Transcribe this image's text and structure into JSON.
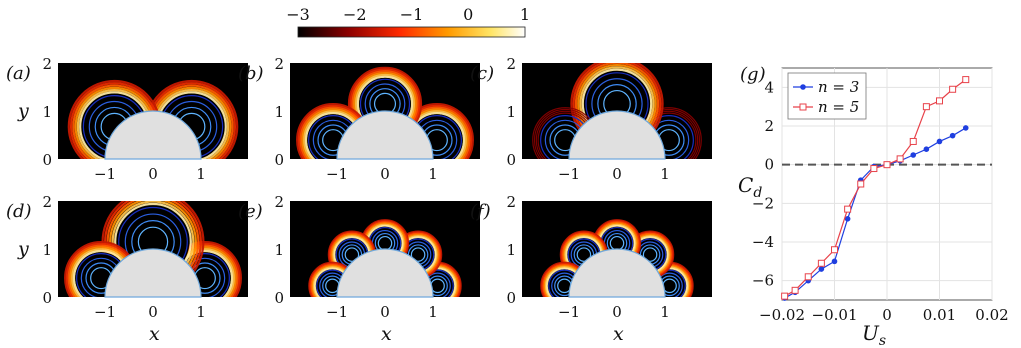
{
  "colorbar": {
    "ticks": [
      "−3",
      "−2",
      "−1",
      "0",
      "1"
    ],
    "range": [
      -3,
      1
    ],
    "colors": [
      "#000000",
      "#8b0000",
      "#ff2a00",
      "#ff9a00",
      "#ffe566",
      "#ffffff"
    ]
  },
  "panels": [
    {
      "label": "(a)",
      "lobes": 2,
      "mode": "wide"
    },
    {
      "label": "(b)",
      "lobes": 3,
      "mode": "normal"
    },
    {
      "label": "(c)",
      "lobes": 3,
      "mode": "top"
    },
    {
      "label": "(d)",
      "lobes": 3,
      "mode": "bigtop"
    },
    {
      "label": "(e)",
      "lobes": 5,
      "mode": "normal"
    },
    {
      "label": "(f)",
      "lobes": 5,
      "mode": "normal"
    }
  ],
  "field_axes": {
    "x_ticks": [
      "−1",
      "0",
      "1"
    ],
    "y_ticks": [
      "2",
      "1",
      "0"
    ],
    "xlabel": "x",
    "ylabel": "y"
  },
  "chart_data": {
    "type": "line",
    "label": "(g)",
    "xlabel": "U",
    "xlabel_sub": "s",
    "ylabel": "C",
    "ylabel_sub": "d",
    "xlim": [
      -0.02,
      0.02
    ],
    "ylim": [
      -7,
      5
    ],
    "x_ticks": [
      "−0.02",
      "−0.01",
      "0",
      "0.01",
      "0.02"
    ],
    "y_ticks": [
      "4",
      "2",
      "0",
      "−2",
      "−4",
      "−6"
    ],
    "grid": true,
    "legend_position": "top-left",
    "series": [
      {
        "name": "n = 3",
        "color": "#1f3fe0",
        "marker": "dot",
        "x": [
          -0.0195,
          -0.0175,
          -0.015,
          -0.0125,
          -0.01,
          -0.0075,
          -0.005,
          -0.0025,
          0,
          0.0025,
          0.005,
          0.0075,
          0.01,
          0.0125,
          0.015
        ],
        "y": [
          -6.9,
          -6.6,
          -6.0,
          -5.4,
          -5.0,
          -2.8,
          -0.8,
          -0.1,
          0.0,
          0.2,
          0.5,
          0.8,
          1.2,
          1.5,
          1.9
        ]
      },
      {
        "name": "n = 5",
        "color": "#e8424a",
        "marker": "square",
        "x": [
          -0.0195,
          -0.0175,
          -0.015,
          -0.0125,
          -0.01,
          -0.0075,
          -0.005,
          -0.0025,
          0,
          0.0025,
          0.005,
          0.0075,
          0.01,
          0.0125,
          0.015
        ],
        "y": [
          -6.8,
          -6.5,
          -5.8,
          -5.1,
          -4.4,
          -2.3,
          -1.0,
          -0.2,
          0.0,
          0.3,
          1.2,
          3.0,
          3.3,
          3.9,
          4.4
        ]
      }
    ]
  }
}
